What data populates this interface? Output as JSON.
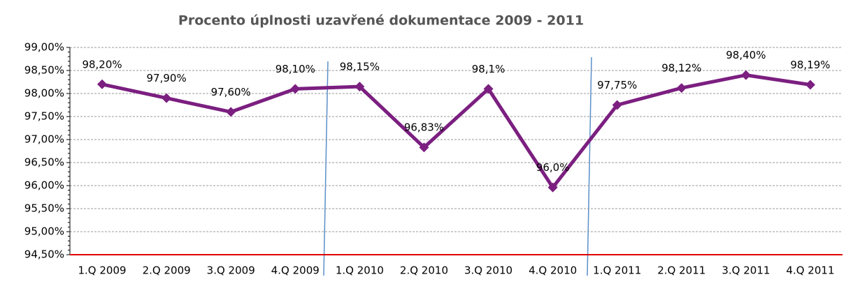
{
  "chart_data": {
    "type": "line",
    "title": "Procento úplnosti uzavřené dokumentace 2009 - 2011",
    "categories": [
      "1.Q 2009",
      "2.Q 2009",
      "3.Q 2009",
      "4.Q 2009",
      "1.Q 2010",
      "2.Q 2010",
      "3.Q 2010",
      "4.Q 2010",
      "1.Q 2011",
      "2.Q 2011",
      "3.Q 2011",
      "4.Q 2011"
    ],
    "series": [
      {
        "name": "Procento úplnosti",
        "color": "#7b1f80",
        "values": [
          98.2,
          97.9,
          97.6,
          98.1,
          98.15,
          96.83,
          98.1,
          95.96,
          97.75,
          98.12,
          98.4,
          98.19
        ],
        "value_labels": [
          "98,20%",
          "97,90%",
          "97,60%",
          "98,10%",
          "98,15%",
          "96,83%",
          "98,1%",
          "96,0%",
          "97,75%",
          "98,12%",
          "98,40%",
          "98,19%"
        ]
      }
    ],
    "ylim": [
      94.5,
      99
    ],
    "yticks": [
      {
        "value": 94.5,
        "label": "94,50%"
      },
      {
        "value": 95,
        "label": "95,00%"
      },
      {
        "value": 95.5,
        "label": "95,50%"
      },
      {
        "value": 96,
        "label": "96,00%"
      },
      {
        "value": 96.5,
        "label": "96,50%"
      },
      {
        "value": 97,
        "label": "97,00%"
      },
      {
        "value": 97.5,
        "label": "97,50%"
      },
      {
        "value": 98,
        "label": "98,00%"
      },
      {
        "value": 98.5,
        "label": "98,50%"
      },
      {
        "value": 99,
        "label": "99,00%"
      }
    ],
    "grid": true
  }
}
